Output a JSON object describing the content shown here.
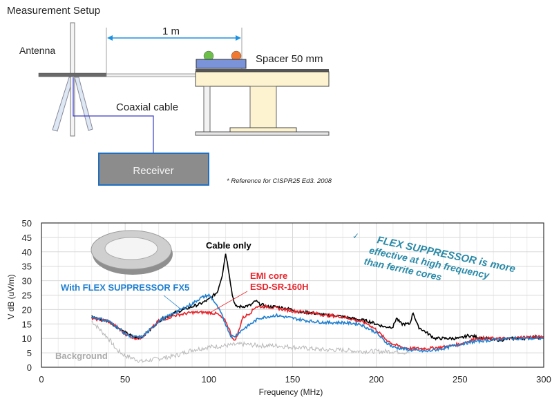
{
  "diagram": {
    "title": "Measurement  Setup",
    "antenna_label": "Antenna",
    "distance_label": "1 m",
    "spacer_label": "Spacer 50 mm",
    "cable_label": "Coaxial cable",
    "receiver_label": "Receiver",
    "reference_note": "* Reference for CISPR25 Ed3. 2008",
    "colors": {
      "dimension": "#1e90e0",
      "cable": "#3a3ac8",
      "receiver": "#8c8c8c",
      "receiver_border": "#1f6fc0",
      "table": "#fdf3d0",
      "device": "#7b93d8",
      "led_left": "#6cc04a",
      "led_right": "#f07830"
    }
  },
  "chart_data": {
    "type": "line",
    "xlabel": "Frequency (MHz)",
    "ylabel": "V dB (uV/m)",
    "xlim": [
      0,
      300
    ],
    "ylim": [
      0,
      50
    ],
    "xticks": [
      0,
      50,
      100,
      150,
      200,
      250,
      300
    ],
    "yticks": [
      0,
      5,
      10,
      15,
      20,
      25,
      30,
      35,
      40,
      45,
      50
    ],
    "grid": true,
    "series": [
      {
        "name": "Background",
        "color": "#b8b8b8",
        "x": [
          30,
          35,
          40,
          45,
          50,
          55,
          60,
          65,
          70,
          80,
          90,
          100,
          110,
          120,
          130,
          140,
          150,
          160,
          170,
          180,
          190,
          200,
          210,
          220
        ],
        "y": [
          16,
          13,
          10,
          6,
          4,
          3,
          2,
          2.5,
          3,
          4,
          6,
          7,
          7.5,
          8,
          7.5,
          7.5,
          7,
          6.5,
          6,
          6,
          5.5,
          5.5,
          5.5,
          5
        ]
      },
      {
        "name": "Cable only",
        "color": "#000000",
        "x": [
          30,
          35,
          40,
          45,
          50,
          55,
          58,
          60,
          65,
          70,
          75,
          80,
          85,
          90,
          95,
          100,
          105,
          108,
          110,
          112,
          114,
          116,
          120,
          125,
          128,
          130,
          135,
          140,
          145,
          150,
          155,
          160,
          165,
          170,
          175,
          180,
          185,
          190,
          195,
          200,
          205,
          210,
          212,
          215,
          220,
          222,
          225,
          230,
          235,
          240,
          245,
          250,
          255,
          260,
          265,
          270,
          275,
          280,
          285,
          290,
          295,
          300
        ],
        "y": [
          17.5,
          16.5,
          16,
          14,
          12,
          10.5,
          10,
          10.5,
          13,
          16,
          17.5,
          19,
          20,
          21,
          22,
          23.5,
          26,
          32,
          39.5,
          33,
          25,
          21,
          21,
          21.5,
          23,
          22,
          21,
          21,
          20.5,
          20,
          19,
          19,
          18.5,
          18,
          18,
          17.5,
          17,
          16.5,
          16,
          15,
          14,
          14,
          17,
          15,
          15,
          19,
          14,
          12,
          10,
          10,
          10,
          10,
          11,
          10.5,
          10,
          9.5,
          9.5,
          10,
          10,
          10,
          10.5,
          10
        ]
      },
      {
        "name": "EMI core ESD-SR-160H",
        "color": "#e8232a",
        "x": [
          30,
          35,
          40,
          45,
          50,
          55,
          58,
          60,
          65,
          70,
          80,
          90,
          100,
          105,
          110,
          113,
          115,
          117,
          120,
          125,
          128,
          135,
          140,
          150,
          160,
          170,
          180,
          190,
          195,
          200,
          205,
          210,
          215,
          220,
          230,
          240,
          250,
          255,
          260,
          270,
          280,
          290,
          300
        ],
        "y": [
          17,
          16.5,
          16,
          14,
          11.5,
          10.2,
          10,
          10.5,
          13,
          16,
          18,
          19,
          19,
          18.5,
          16,
          12,
          9,
          11,
          17,
          19,
          21,
          21,
          20.5,
          19.5,
          19,
          18,
          17.5,
          16,
          15,
          13,
          10,
          8,
          7,
          6.5,
          6.5,
          7,
          8,
          9,
          10,
          10,
          10,
          10.5,
          10.5
        ]
      },
      {
        "name": "With FLEX SUPPRESSOR FX5",
        "color": "#1f7fd0",
        "x": [
          30,
          35,
          40,
          45,
          50,
          55,
          60,
          65,
          70,
          80,
          90,
          95,
          100,
          103,
          107,
          110,
          113,
          115,
          120,
          125,
          130,
          140,
          150,
          160,
          170,
          180,
          190,
          200,
          205,
          210,
          215,
          220,
          230,
          240,
          250,
          260,
          270,
          280,
          290,
          300
        ],
        "y": [
          17.5,
          16.8,
          16,
          14,
          11.5,
          10.5,
          10.5,
          13,
          16,
          19,
          22,
          24,
          25,
          23,
          19,
          15,
          11,
          10.5,
          13,
          15,
          17,
          18,
          17,
          16,
          15.5,
          15.5,
          15,
          12,
          9,
          7,
          6.5,
          6,
          5.5,
          6.5,
          8,
          9,
          9.5,
          10,
          10,
          10
        ]
      }
    ],
    "annotations": {
      "cable_only": "Cable only",
      "emi_core_line1": "EMI core",
      "emi_core_line2": "ESD-SR-160H",
      "flex": "With FLEX SUPPRESSOR FX5",
      "background": "Background",
      "callout_line1": "FLEX SUPPRESSOR is more",
      "callout_line2": "effective at high frequency",
      "callout_line3": "than ferrite cores",
      "callout_color": "#2a8aa8"
    }
  }
}
